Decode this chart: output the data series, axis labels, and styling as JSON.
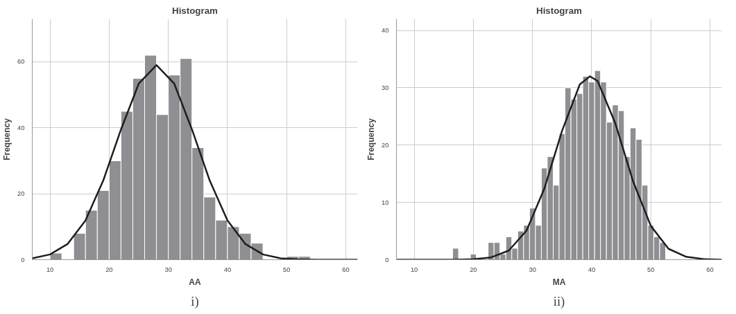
{
  "chart_data": [
    {
      "type": "histogram",
      "title": "Histogram",
      "xlabel": "AA",
      "ylabel": "Frequency",
      "annotations": [
        "i)"
      ],
      "color": "#8e8e93",
      "bins": [
        10,
        12,
        14,
        16,
        18,
        20,
        22,
        24,
        26,
        28,
        30,
        32,
        34,
        36,
        38,
        40,
        42,
        44,
        46,
        48,
        50,
        52,
        54
      ],
      "values": [
        2,
        0,
        8,
        15,
        21,
        30,
        45,
        55,
        62,
        44,
        56,
        61,
        34,
        19,
        12,
        10,
        8,
        5,
        0,
        0,
        1,
        1
      ],
      "series": [
        {
          "type": "line",
          "color": "#1e1e1e",
          "x": [
            7,
            10,
            13,
            16,
            19,
            22,
            25,
            28,
            31,
            34,
            37,
            40,
            43,
            46,
            49,
            52,
            55,
            62
          ],
          "values": [
            0.4,
            1.6,
            4.8,
            11.9,
            24,
            39.5,
            53.4,
            59,
            53.4,
            39.5,
            24,
            11.9,
            4.8,
            1.6,
            0.4,
            0.1,
            0,
            0
          ]
        }
      ],
      "xlim": [
        7,
        62
      ],
      "ylim": [
        0,
        73
      ],
      "xticks": [
        10,
        20,
        30,
        40,
        50,
        60
      ],
      "yticks": [
        0,
        20,
        40,
        60
      ],
      "grid": true
    },
    {
      "type": "histogram",
      "title": "Histogram",
      "xlabel": "MA",
      "ylabel": "Frequency",
      "annotations": [
        "ii)"
      ],
      "color": "#8e8e93",
      "bins": [
        16.5,
        17.5,
        18.5,
        19.5,
        20.5,
        21.5,
        22.5,
        23.5,
        24.5,
        25.5,
        26.5,
        27.5,
        28.5,
        29.5,
        30.5,
        31.5,
        32.5,
        33.5,
        34.5,
        35.5,
        36.5,
        37.5,
        38.5,
        39.5,
        40.5,
        41.5,
        42.5,
        43.5,
        44.5,
        45.5,
        46.5,
        47.5,
        48.5,
        49.5,
        50.5,
        51.5,
        52.5
      ],
      "values": [
        2,
        0,
        0,
        1,
        0,
        0,
        3,
        3,
        1,
        4,
        2,
        5,
        6,
        9,
        6,
        16,
        18,
        13,
        22,
        30,
        28,
        29,
        32,
        31,
        33,
        31,
        24,
        27,
        26,
        18,
        23,
        21,
        13,
        6,
        4,
        3
      ],
      "series": [
        {
          "type": "line",
          "color": "#1e1e1e",
          "x": [
            7,
            14,
            17,
            20,
            23,
            26,
            29,
            32,
            35,
            38,
            39.7,
            41,
            44,
            47,
            50,
            53,
            56,
            59,
            62
          ],
          "values": [
            0,
            0,
            0,
            0.1,
            0.4,
            1.6,
            5.1,
            12.4,
            22.5,
            30.6,
            32,
            31.2,
            23.8,
            13.7,
            5.9,
            1.9,
            0.5,
            0.1,
            0
          ]
        }
      ],
      "xlim": [
        7,
        62
      ],
      "ylim": [
        0,
        42
      ],
      "xticks": [
        10,
        20,
        30,
        40,
        50,
        60
      ],
      "yticks": [
        0,
        10,
        20,
        30,
        40
      ],
      "grid": true
    }
  ]
}
